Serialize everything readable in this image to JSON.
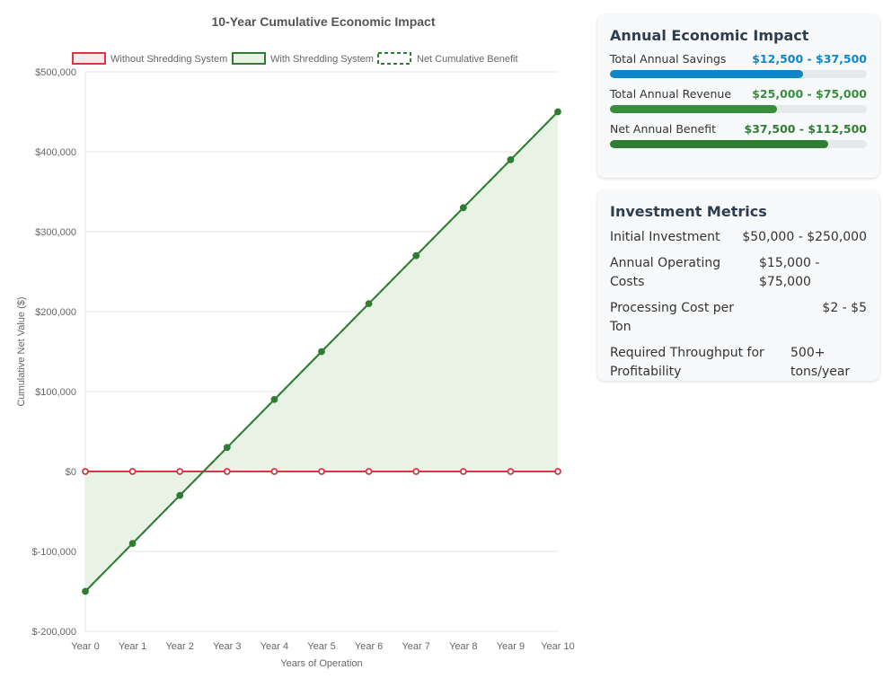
{
  "chart_data": {
    "type": "line",
    "title": "10-Year Cumulative Economic Impact",
    "xlabel": "Years of Operation",
    "ylabel": "Cumulative Net Value ($)",
    "categories": [
      "Year 0",
      "Year 1",
      "Year 2",
      "Year 3",
      "Year 4",
      "Year 5",
      "Year 6",
      "Year 7",
      "Year 8",
      "Year 9",
      "Year 10"
    ],
    "ylim": [
      -200000,
      500000
    ],
    "yticks": [
      500000,
      400000,
      300000,
      200000,
      100000,
      0,
      -100000,
      -200000
    ],
    "ytick_labels": [
      "$500,000",
      "$400,000",
      "$300,000",
      "$200,000",
      "$100,000",
      "$0",
      "$-100,000",
      "$-200,000"
    ],
    "grid": true,
    "legend_position": "top",
    "series": [
      {
        "name": "Without Shredding System",
        "color": "#dc3545",
        "fill": "#fbe9ea",
        "style": "solid",
        "values": [
          0,
          0,
          0,
          0,
          0,
          0,
          0,
          0,
          0,
          0,
          0
        ]
      },
      {
        "name": "With Shredding System",
        "color": "#2e7d32",
        "fill": "#e8f3e6",
        "style": "solid",
        "area": true,
        "values": [
          -150000,
          -90000,
          -30000,
          30000,
          90000,
          150000,
          210000,
          270000,
          330000,
          390000,
          450000
        ]
      },
      {
        "name": "Net Cumulative Benefit",
        "color": "#2e7d32",
        "style": "dashed",
        "values": [
          -150000,
          -90000,
          -30000,
          30000,
          90000,
          150000,
          210000,
          270000,
          330000,
          390000,
          450000
        ]
      }
    ]
  },
  "impact": {
    "title": "Annual Economic Impact",
    "rows": [
      {
        "label": "Total Annual Savings",
        "value": "$12,500 - $37,500",
        "color": "#0f86c9",
        "fill": 0.75
      },
      {
        "label": "Total Annual Revenue",
        "value": "$25,000 - $75,000",
        "color": "#388e3c",
        "fill": 0.65
      },
      {
        "label": "Net Annual Benefit",
        "value": "$37,500 - $112,500",
        "color": "#2e7d32",
        "fill": 0.85
      }
    ]
  },
  "metrics": {
    "title": "Investment Metrics",
    "rows": [
      {
        "label": "Initial Investment",
        "value": "$50,000 - $250,000"
      },
      {
        "label": "Annual Operating Costs",
        "value": "$15,000 - $75,000"
      },
      {
        "label": "Processing Cost per Ton",
        "value": "$2 - $5"
      },
      {
        "label": "Required Throughput for Profitability",
        "value": "500+ tons/year"
      }
    ]
  }
}
